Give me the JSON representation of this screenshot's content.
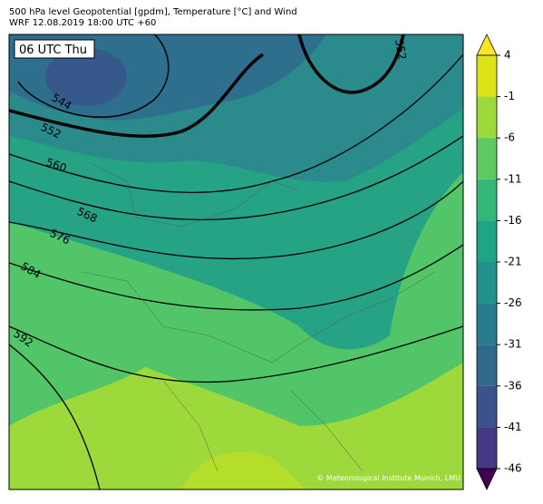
{
  "header": {
    "line1": "500 hPa level Geopotential [gpdm], Temperature [°C] and Wind",
    "line2": "WRF 12.08.2019 18:00 UTC +60"
  },
  "map": {
    "time_label": "06 UTC Thu",
    "contour_labels": [
      "544",
      "552",
      "560",
      "568",
      "576",
      "584",
      "592",
      "552"
    ],
    "copyright": "© Meteorological Institute Munich, LMU"
  },
  "colorbar": {
    "ticks": [
      4,
      -1,
      -6,
      -11,
      -16,
      -21,
      -26,
      -31,
      -36,
      -41,
      -46
    ],
    "colors": [
      "#dde318",
      "#9dd93b",
      "#5ec962",
      "#35b779",
      "#20a486",
      "#21918c",
      "#287c8e",
      "#31688e",
      "#3b528b",
      "#443983",
      "#481f70",
      "#440154"
    ],
    "extend_top_color": "#fde725",
    "extend_bottom_color": "#440154"
  }
}
